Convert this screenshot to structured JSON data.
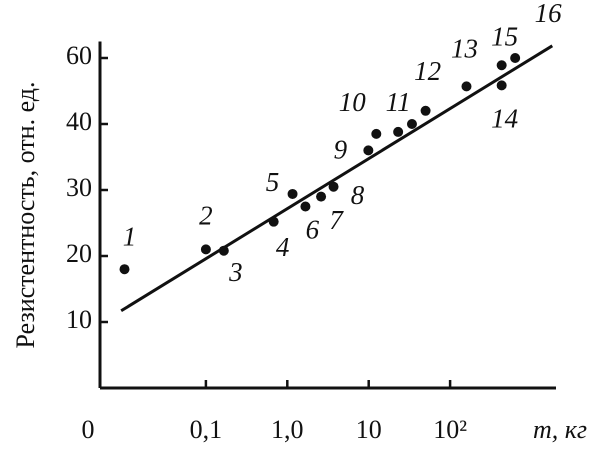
{
  "chart_data": {
    "type": "scatter",
    "x_label": "m, кг",
    "y_label": "Резистентность, отн. ед.",
    "x_origin_label": "0",
    "x_scale": "log",
    "y_scale": "tick-spaced",
    "color": "#111111",
    "xlim": [
      0.005,
      2000
    ],
    "xticks": [
      {
        "value": 0.1,
        "label": "0,1"
      },
      {
        "value": 1,
        "label": "1,0"
      },
      10,
      {
        "value": 100,
        "label": "10²"
      }
    ],
    "ylim": [
      0,
      65
    ],
    "yticks": [
      10,
      20,
      30,
      40,
      60
    ],
    "x": [
      0.01,
      0.1,
      0.166,
      0.68,
      1.16,
      1.67,
      2.6,
      3.7,
      9.9,
      12.4,
      23,
      34,
      50,
      159,
      430,
      430,
      630
    ],
    "values": [
      18,
      21,
      20.8,
      25.2,
      29.4,
      27.5,
      29,
      30.5,
      36,
      38.5,
      38.8,
      40,
      44,
      51.4,
      57.8,
      51.7,
      60
    ],
    "point_labels": [
      "1",
      "2",
      "3",
      "4",
      "5",
      "6",
      "7",
      "8",
      "9",
      "10",
      "11",
      null,
      "12",
      "13",
      "15",
      "14",
      "16"
    ],
    "fit_line": {
      "x": [
        0.0091,
        1800
      ],
      "y": [
        11.7,
        63.7
      ]
    }
  }
}
